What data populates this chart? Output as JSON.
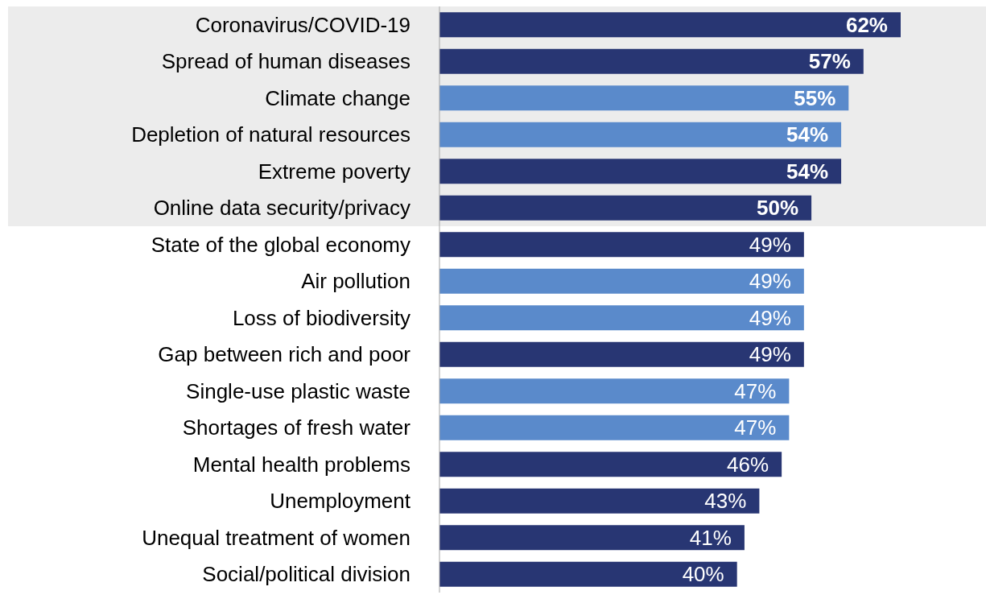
{
  "chart_data": {
    "type": "bar",
    "orientation": "horizontal",
    "value_labels": [
      "62%",
      "57%",
      "55%",
      "54%",
      "54%",
      "50%",
      "49%",
      "49%",
      "49%",
      "49%",
      "47%",
      "47%",
      "46%",
      "43%",
      "41%",
      "40%"
    ],
    "categories": [
      "Coronavirus/COVID-19",
      "Spread of human diseases",
      "Climate change",
      "Depletion of natural resources",
      "Extreme poverty",
      "Online data security/privacy",
      "State of the global economy",
      "Air pollution",
      "Loss of biodiversity",
      "Gap between rich and poor",
      "Single-use plastic waste",
      "Shortages of fresh water",
      "Mental health problems",
      "Unemployment",
      "Unequal treatment of women",
      "Social/political division"
    ],
    "values": [
      62,
      57,
      55,
      54,
      54,
      50,
      49,
      49,
      49,
      49,
      47,
      47,
      46,
      43,
      41,
      40
    ],
    "colors": [
      "#283673",
      "#283673",
      "#5a8acb",
      "#5a8acb",
      "#283673",
      "#283673",
      "#283673",
      "#5a8acb",
      "#5a8acb",
      "#283673",
      "#5a8acb",
      "#5a8acb",
      "#283673",
      "#283673",
      "#283673",
      "#283673"
    ],
    "bands": [
      {
        "axis": "y",
        "from": "Coronavirus/COVID-19",
        "to": "Online data security/privacy",
        "color": "#ececec"
      }
    ]
  }
}
